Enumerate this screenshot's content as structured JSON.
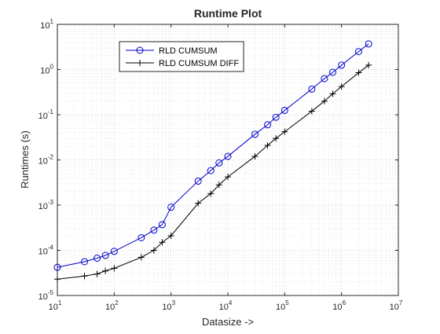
{
  "chart_data": {
    "type": "line",
    "title": "Runtime Plot",
    "xlabel": "Datasize ->",
    "ylabel": "Runtimes (s)",
    "xscale": "log",
    "yscale": "log",
    "xlim": [
      10,
      10000000
    ],
    "ylim": [
      1e-05,
      10
    ],
    "grid": true,
    "minor_grid": true,
    "legend_position": "top-left",
    "x_ticks": [
      {
        "base": "10",
        "exp": "1"
      },
      {
        "base": "10",
        "exp": "2"
      },
      {
        "base": "10",
        "exp": "3"
      },
      {
        "base": "10",
        "exp": "4"
      },
      {
        "base": "10",
        "exp": "5"
      },
      {
        "base": "10",
        "exp": "6"
      },
      {
        "base": "10",
        "exp": "7"
      }
    ],
    "y_ticks": [
      {
        "base": "10",
        "exp": "-5"
      },
      {
        "base": "10",
        "exp": "-4"
      },
      {
        "base": "10",
        "exp": "-3"
      },
      {
        "base": "10",
        "exp": "-2"
      },
      {
        "base": "10",
        "exp": "-1"
      },
      {
        "base": "10",
        "exp": "0"
      },
      {
        "base": "10",
        "exp": "1"
      }
    ],
    "series": [
      {
        "name": "RLD CUMSUM",
        "color": "#0000cc",
        "marker": "circle",
        "points": [
          [
            10,
            4.2e-05
          ],
          [
            30,
            5.6e-05
          ],
          [
            50,
            6.7e-05
          ],
          [
            70,
            7.7e-05
          ],
          [
            100,
            9.5e-05
          ],
          [
            300,
            0.00019
          ],
          [
            500,
            0.00028
          ],
          [
            700,
            0.00037
          ],
          [
            1000,
            0.0009
          ],
          [
            3000,
            0.0034
          ],
          [
            5000,
            0.0058
          ],
          [
            7000,
            0.0086
          ],
          [
            10000,
            0.012
          ],
          [
            30000,
            0.037
          ],
          [
            50000,
            0.06
          ],
          [
            70000,
            0.088
          ],
          [
            100000,
            0.125
          ],
          [
            300000,
            0.37
          ],
          [
            500000,
            0.63
          ],
          [
            700000,
            0.87
          ],
          [
            1000000,
            1.25
          ],
          [
            2000000,
            2.5
          ],
          [
            3000000,
            3.7
          ]
        ]
      },
      {
        "name": "RLD CUMSUM DIFF",
        "color": "#000000",
        "marker": "plus",
        "points": [
          [
            10,
            2.3e-05
          ],
          [
            30,
            2.7e-05
          ],
          [
            50,
            3e-05
          ],
          [
            70,
            3.5e-05
          ],
          [
            100,
            4e-05
          ],
          [
            300,
            7e-05
          ],
          [
            500,
            0.0001
          ],
          [
            700,
            0.00015
          ],
          [
            1000,
            0.00021
          ],
          [
            3000,
            0.0011
          ],
          [
            5000,
            0.0018
          ],
          [
            7000,
            0.0028
          ],
          [
            10000,
            0.0042
          ],
          [
            30000,
            0.012
          ],
          [
            50000,
            0.021
          ],
          [
            70000,
            0.03
          ],
          [
            100000,
            0.042
          ],
          [
            300000,
            0.12
          ],
          [
            500000,
            0.2
          ],
          [
            700000,
            0.29
          ],
          [
            1000000,
            0.42
          ],
          [
            2000000,
            0.85
          ],
          [
            3000000,
            1.25
          ]
        ]
      }
    ]
  }
}
